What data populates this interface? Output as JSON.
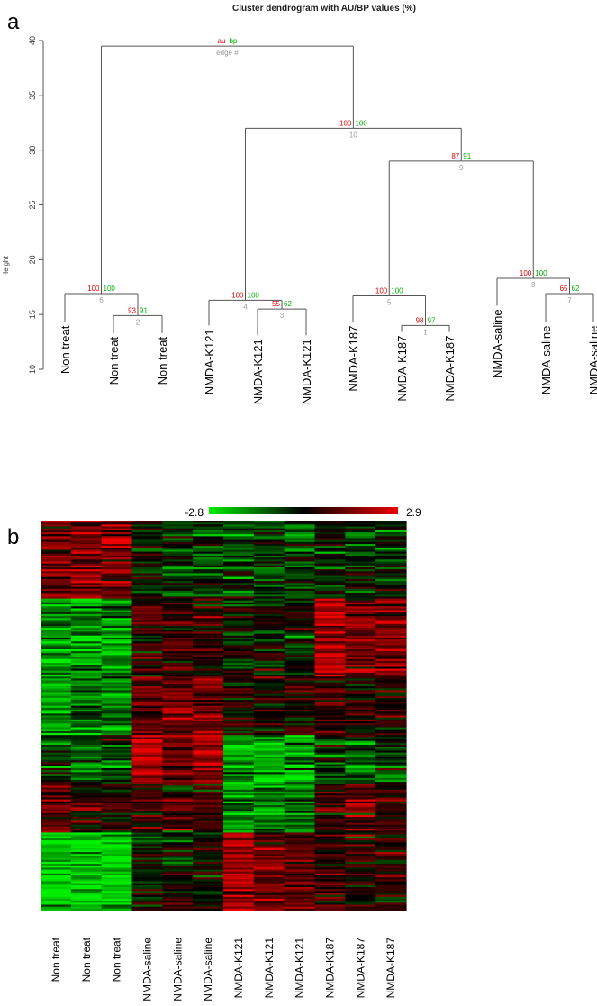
{
  "panels": {
    "a": "a",
    "b": "b"
  },
  "chart_data": [
    {
      "type": "dendrogram",
      "title": "Cluster dendrogram with AU/BP values (%)",
      "ylabel": "Height",
      "ylim": [
        10,
        40
      ],
      "yticks": [
        "10",
        "15",
        "20",
        "25",
        "30",
        "35",
        "40"
      ],
      "legend_labels": {
        "au": "au",
        "bp": "bp",
        "edge": "edge #"
      },
      "leaves": [
        {
          "label": "Non treat",
          "height": 14.3
        },
        {
          "label": "Non treat",
          "height": 13.3
        },
        {
          "label": "Non treat",
          "height": 13.3
        },
        {
          "label": "NMDA-K121",
          "height": 14.0
        },
        {
          "label": "NMDA-K121",
          "height": 13.1
        },
        {
          "label": "NMDA-K121",
          "height": 13.1
        },
        {
          "label": "NMDA-K187",
          "height": 14.3
        },
        {
          "label": "NMDA-K187",
          "height": 13.4
        },
        {
          "label": "NMDA-K187",
          "height": 13.4
        },
        {
          "label": "NMDA-saline",
          "height": 15.8
        },
        {
          "label": "NMDA-saline",
          "height": 14.3
        },
        {
          "label": "NMDA-saline",
          "height": 14.3
        }
      ],
      "merges": [
        {
          "id": 1,
          "left": "L7",
          "right": "L8",
          "height": 14.0,
          "au": "98",
          "bp": "97",
          "edge": "1"
        },
        {
          "id": 2,
          "left": "L1",
          "right": "L2",
          "height": 14.9,
          "au": "93",
          "bp": "91",
          "edge": "2"
        },
        {
          "id": 3,
          "left": "L4",
          "right": "L5",
          "height": 15.5,
          "au": "55",
          "bp": "62",
          "edge": "3"
        },
        {
          "id": 4,
          "left": "L3",
          "right": "M3",
          "height": 16.3,
          "au": "100",
          "bp": "100",
          "edge": "4"
        },
        {
          "id": 5,
          "left": "L6",
          "right": "M1",
          "height": 16.7,
          "au": "100",
          "bp": "100",
          "edge": "5"
        },
        {
          "id": 6,
          "left": "L0",
          "right": "M2",
          "height": 16.9,
          "au": "100",
          "bp": "100",
          "edge": "6"
        },
        {
          "id": 7,
          "left": "L10",
          "right": "L11",
          "height": 16.9,
          "au": "65",
          "bp": "62",
          "edge": "7"
        },
        {
          "id": 8,
          "left": "L9",
          "right": "M7",
          "height": 18.3,
          "au": "100",
          "bp": "100",
          "edge": "8"
        },
        {
          "id": 9,
          "left": "M5",
          "right": "M8",
          "height": 29.0,
          "au": "87",
          "bp": "91",
          "edge": "9"
        },
        {
          "id": 10,
          "left": "M4",
          "right": "M9",
          "height": 32.0,
          "au": "100",
          "bp": "100",
          "edge": "10"
        },
        {
          "id": 11,
          "left": "M6",
          "right": "M10",
          "height": 39.5,
          "au": "au",
          "bp": "bp",
          "edge": "edge #"
        }
      ]
    },
    {
      "type": "heatmap",
      "colorbar": {
        "min": -2.8,
        "max": 2.9,
        "min_label": "-2.8",
        "max_label": "2.9",
        "colors": [
          "#00ee00",
          "#000000",
          "#ee0000"
        ]
      },
      "columns": [
        "Non treat",
        "Non treat",
        "Non treat",
        "NMDA-saline",
        "NMDA-saline",
        "NMDA-saline",
        "NMDA-K121",
        "NMDA-K121",
        "NMDA-K121",
        "NMDA-K187",
        "NMDA-K187",
        "NMDA-K187"
      ],
      "n_rows": 200,
      "row_blocks": [
        {
          "rows": 40,
          "means": [
            1.6,
            1.6,
            1.6,
            -0.3,
            -0.6,
            -0.6,
            -0.7,
            -0.7,
            -0.7,
            -0.4,
            -0.4,
            -0.4
          ]
        },
        {
          "rows": 40,
          "means": [
            -1.6,
            -1.7,
            -1.7,
            0.4,
            0.6,
            0.5,
            -0.2,
            -0.1,
            -0.1,
            2.0,
            1.6,
            1.3
          ]
        },
        {
          "rows": 30,
          "means": [
            -1.5,
            -1.3,
            -1.3,
            1.0,
            1.5,
            1.3,
            0.6,
            0.4,
            0.3,
            0.5,
            0.4,
            0.5
          ]
        },
        {
          "rows": 25,
          "means": [
            -0.6,
            -0.8,
            -0.6,
            2.2,
            1.4,
            1.8,
            -1.8,
            -2.0,
            -1.8,
            -0.6,
            -0.6,
            -0.6
          ]
        },
        {
          "rows": 25,
          "means": [
            0.9,
            0.4,
            0.3,
            0.7,
            0.5,
            0.6,
            -2.0,
            -1.4,
            -1.2,
            0.6,
            0.8,
            0.6
          ]
        },
        {
          "rows": 40,
          "means": [
            -2.1,
            -2.2,
            -2.2,
            0.0,
            0.2,
            0.0,
            1.7,
            1.4,
            1.1,
            0.6,
            0.4,
            0.3
          ]
        }
      ],
      "noise": 0.75
    }
  ]
}
